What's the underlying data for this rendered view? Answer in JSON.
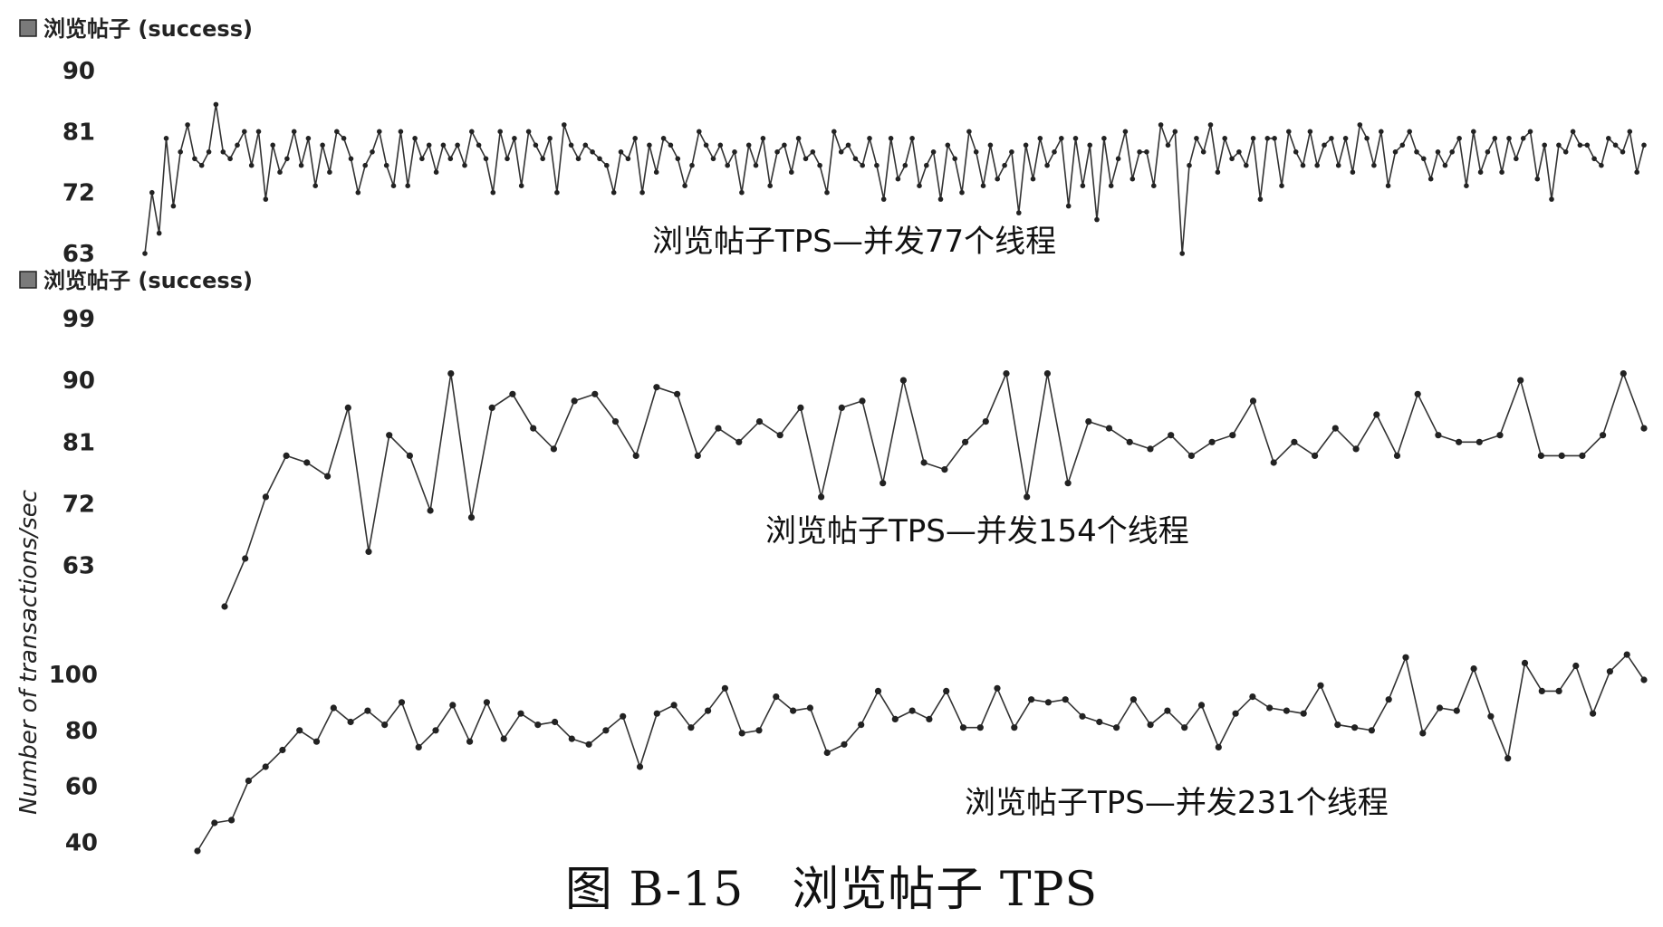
{
  "figure": {
    "caption": "图 B-15　浏览帖子 TPS",
    "y_axis_label": "Number of transactions/sec",
    "series_color": "#333333"
  },
  "chart_data": [
    {
      "type": "line",
      "legend": "浏览帖子 (success)",
      "annotation": "浏览帖子TPS—并发77个线程",
      "ylabel": "Number of transactions/sec",
      "yticks": [
        63,
        72,
        81,
        90
      ],
      "ylim": [
        63,
        90
      ],
      "grid": false,
      "series": [
        {
          "values": [
            63,
            72,
            66,
            80,
            70,
            78,
            82,
            77,
            76,
            78,
            85,
            78,
            77,
            79,
            81,
            76,
            81,
            71,
            79,
            75,
            77,
            81,
            76,
            80,
            73,
            79,
            75,
            81,
            80,
            77,
            72,
            76,
            78,
            81,
            76,
            73,
            81,
            73,
            80,
            77,
            79,
            75,
            79,
            77,
            79,
            76,
            81,
            79,
            77,
            72,
            81,
            77,
            80,
            73,
            81,
            79,
            77,
            80,
            72,
            82,
            79,
            77,
            79,
            78,
            77,
            76,
            72,
            78,
            77,
            80,
            72,
            79,
            75,
            80,
            79,
            77,
            73,
            76,
            81,
            79,
            77,
            79,
            76,
            78,
            72,
            79,
            76,
            80,
            73,
            78,
            79,
            75,
            80,
            77,
            78,
            76,
            72,
            81,
            78,
            79,
            77,
            76,
            80,
            76,
            71,
            80,
            74,
            76,
            80,
            73,
            76,
            78,
            71,
            79,
            77,
            72,
            81,
            78,
            73,
            79,
            74,
            76,
            78,
            69,
            79,
            74,
            80,
            76,
            78,
            80,
            70,
            80,
            73,
            79,
            68,
            80,
            73,
            77,
            81,
            74,
            78,
            78,
            73,
            82,
            79,
            81,
            63,
            76,
            80,
            78,
            82,
            75,
            80,
            77,
            78,
            76,
            80,
            71,
            80,
            80,
            73,
            81,
            78,
            76,
            81,
            76,
            79,
            80,
            76,
            80,
            75,
            82,
            80,
            76,
            81,
            73,
            78,
            79,
            81,
            78,
            77,
            74,
            78,
            76,
            78,
            80,
            73,
            81,
            75,
            78,
            80,
            75,
            80,
            77,
            80,
            81,
            74,
            79,
            71,
            79,
            78,
            81,
            79,
            79,
            77,
            76,
            80,
            79,
            78,
            81,
            75,
            79
          ]
        }
      ]
    },
    {
      "type": "line",
      "legend": "浏览帖子 (success)",
      "annotation": "浏览帖子TPS—并发154个线程",
      "ylabel": "Number of transactions/sec",
      "yticks": [
        63,
        72,
        81,
        90,
        99
      ],
      "ylim": [
        57,
        99
      ],
      "grid": false,
      "series": [
        {
          "values": [
            57,
            64,
            73,
            79,
            78,
            76,
            86,
            65,
            82,
            79,
            71,
            91,
            70,
            86,
            88,
            83,
            80,
            87,
            88,
            84,
            79,
            89,
            88,
            79,
            83,
            81,
            84,
            82,
            86,
            73,
            86,
            87,
            75,
            90,
            78,
            77,
            81,
            84,
            91,
            73,
            91,
            75,
            84,
            83,
            81,
            80,
            82,
            79,
            81,
            82,
            87,
            78,
            81,
            79,
            83,
            80,
            85,
            79,
            88,
            82,
            81,
            81,
            82,
            90,
            79,
            79,
            79,
            82,
            91,
            83
          ]
        }
      ]
    },
    {
      "type": "line",
      "annotation": "浏览帖子TPS—并发231个线程",
      "ylabel": "Number of transactions/sec",
      "yticks": [
        40,
        60,
        80,
        100
      ],
      "ylim": [
        37,
        108
      ],
      "grid": false,
      "series": [
        {
          "values": [
            37,
            47,
            48,
            62,
            67,
            73,
            80,
            76,
            88,
            83,
            87,
            82,
            90,
            74,
            80,
            89,
            76,
            90,
            77,
            86,
            82,
            83,
            77,
            75,
            80,
            85,
            67,
            86,
            89,
            81,
            87,
            95,
            79,
            80,
            92,
            87,
            88,
            72,
            75,
            82,
            94,
            84,
            87,
            84,
            94,
            81,
            81,
            95,
            81,
            91,
            90,
            91,
            85,
            83,
            81,
            91,
            82,
            87,
            81,
            89,
            74,
            86,
            92,
            88,
            87,
            86,
            96,
            82,
            81,
            80,
            91,
            106,
            79,
            88,
            87,
            102,
            85,
            70,
            104,
            94,
            94,
            103,
            86,
            101,
            107,
            98
          ]
        }
      ]
    }
  ]
}
